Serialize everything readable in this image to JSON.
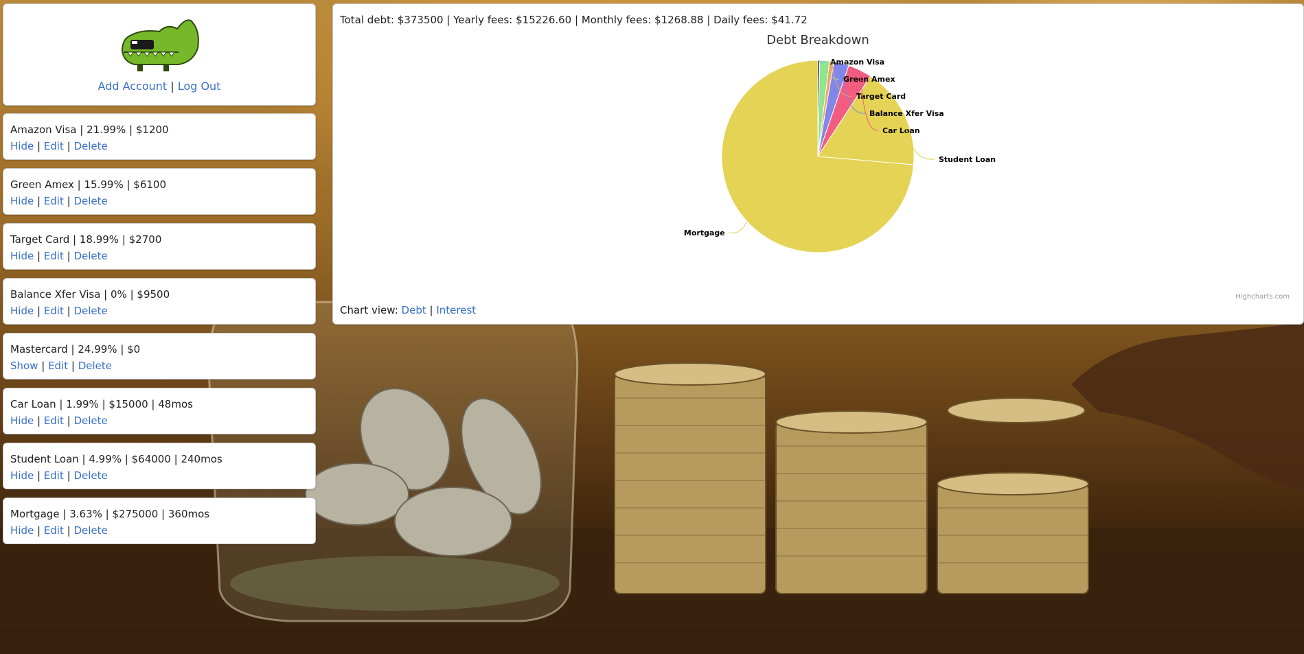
{
  "header": {
    "add_account": "Add Account",
    "sep": "|",
    "log_out": "Log Out"
  },
  "accounts": [
    {
      "summary": "Amazon Visa | 21.99% | $1200",
      "toggle": "Hide",
      "edit": "Edit",
      "delete": "Delete"
    },
    {
      "summary": "Green Amex | 15.99% | $6100",
      "toggle": "Hide",
      "edit": "Edit",
      "delete": "Delete"
    },
    {
      "summary": "Target Card | 18.99% | $2700",
      "toggle": "Hide",
      "edit": "Edit",
      "delete": "Delete"
    },
    {
      "summary": "Balance Xfer Visa | 0% | $9500",
      "toggle": "Hide",
      "edit": "Edit",
      "delete": "Delete"
    },
    {
      "summary": "Mastercard | 24.99% | $0",
      "toggle": "Show",
      "edit": "Edit",
      "delete": "Delete"
    },
    {
      "summary": "Car Loan | 1.99% | $15000 | 48mos",
      "toggle": "Hide",
      "edit": "Edit",
      "delete": "Delete"
    },
    {
      "summary": "Student Loan | 4.99% | $64000 | 240mos",
      "toggle": "Hide",
      "edit": "Edit",
      "delete": "Delete"
    },
    {
      "summary": "Mortgage | 3.63% | $275000 | 360mos",
      "toggle": "Hide",
      "edit": "Edit",
      "delete": "Delete"
    }
  ],
  "summary_text": "Total debt: $373500 | Yearly fees: $15226.60 | Monthly fees: $1268.88 | Daily fees: $41.72",
  "chart_view": {
    "label": "Chart view:",
    "debt": "Debt",
    "sep": "|",
    "interest": "Interest"
  },
  "credits": "Highcharts.com",
  "chart_data": {
    "type": "pie",
    "title": "Debt Breakdown",
    "slices": [
      {
        "name": "Amazon Visa",
        "value": 1200,
        "color": "#2f2f35"
      },
      {
        "name": "Green Amex",
        "value": 6100,
        "color": "#8ee68e"
      },
      {
        "name": "Target Card",
        "value": 2700,
        "color": "#f4a462"
      },
      {
        "name": "Balance Xfer Visa",
        "value": 9500,
        "color": "#8087e8"
      },
      {
        "name": "Car Loan",
        "value": 15000,
        "color": "#f15c80"
      },
      {
        "name": "Student Loan",
        "value": 64000,
        "color": "#e4d354"
      },
      {
        "name": "Mortgage",
        "value": 275000,
        "color": "#e4d354"
      }
    ]
  },
  "logo_icon": "crocodile-icon",
  "colors": {
    "link": "#3a70c9",
    "logo_green": "#76b82a"
  }
}
